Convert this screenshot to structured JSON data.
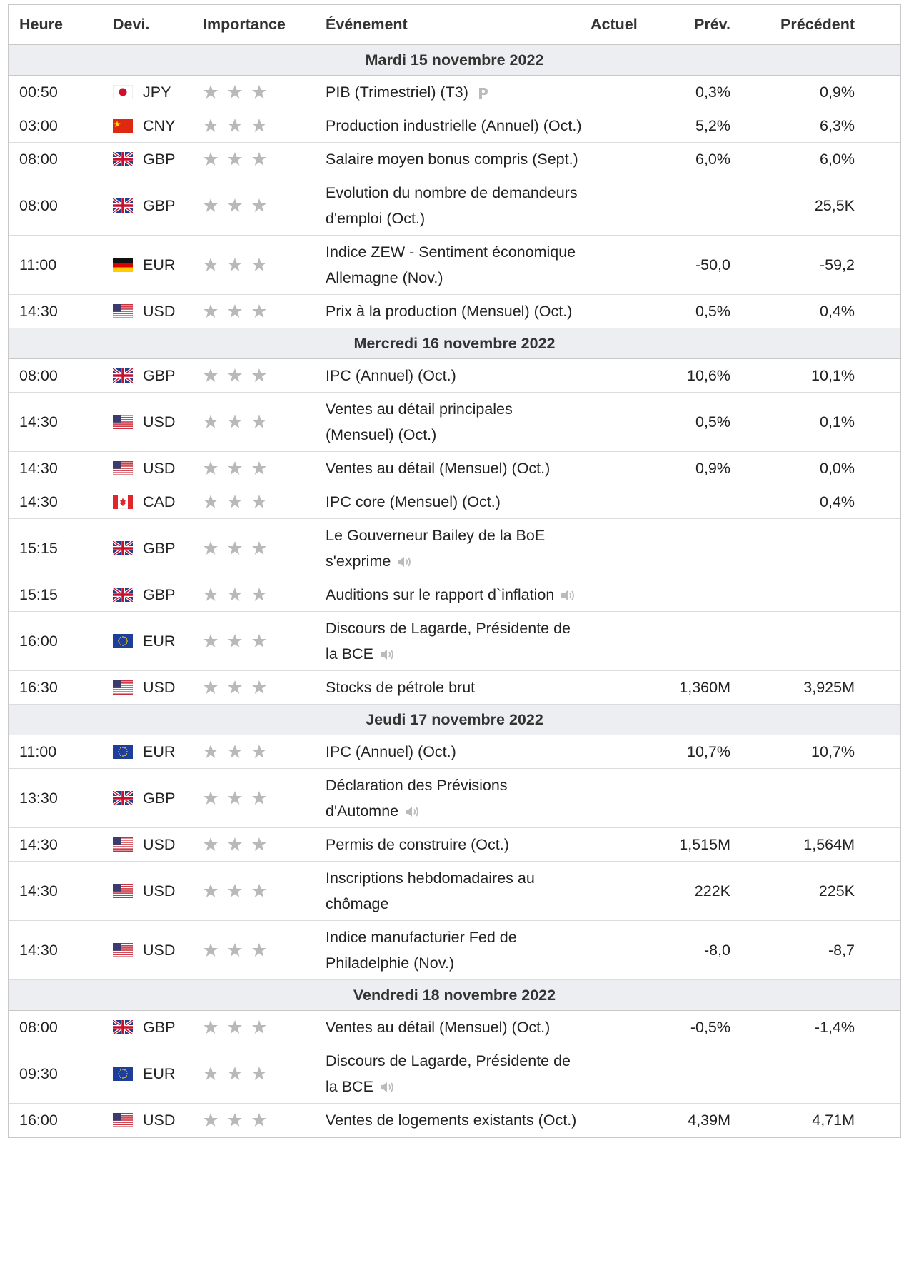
{
  "header": {
    "columns": [
      "Heure",
      "Devi.",
      "Importance",
      "Événement",
      "Actuel",
      "Prév.",
      "Précédent"
    ]
  },
  "groups": [
    {
      "date": "Mardi 15 novembre 2022",
      "rows": [
        {
          "time": "00:50",
          "currency": "JPY",
          "event": "PIB (Trimestriel) (T3)",
          "forecast": "0,3%",
          "previous": "0,9%"
        },
        {
          "time": "03:00",
          "currency": "CNY",
          "event": "Production industrielle (Annuel) (Oct.)",
          "forecast": "5,2%",
          "previous": "6,3%"
        },
        {
          "time": "08:00",
          "currency": "GBP",
          "event": "Salaire moyen bonus compris (Sept.)",
          "forecast": "6,0%",
          "previous": "6,0%"
        },
        {
          "time": "08:00",
          "currency": "GBP",
          "event": "Evolution du nombre de demandeurs d'emploi (Oct.)",
          "previous": "25,5K"
        },
        {
          "time": "11:00",
          "currency": "EUR",
          "event": "Indice ZEW - Sentiment économique Allemagne (Nov.)",
          "forecast": "-50,0",
          "previous": "-59,2"
        },
        {
          "time": "14:30",
          "currency": "USD",
          "event": "Prix à la production (Mensuel) (Oct.)",
          "forecast": "0,5%",
          "previous": "0,4%"
        }
      ]
    },
    {
      "date": "Mercredi 16 novembre 2022",
      "rows": [
        {
          "time": "08:00",
          "currency": "GBP",
          "event": "IPC (Annuel) (Oct.)",
          "forecast": "10,6%",
          "previous": "10,1%"
        },
        {
          "time": "14:30",
          "currency": "USD",
          "event": "Ventes au détail principales (Mensuel) (Oct.)",
          "forecast": "0,5%",
          "previous": "0,1%"
        },
        {
          "time": "14:30",
          "currency": "USD",
          "event": "Ventes au détail (Mensuel) (Oct.)",
          "forecast": "0,9%",
          "previous": "0,0%"
        },
        {
          "time": "14:30",
          "currency": "CAD",
          "event": "IPC core (Mensuel) (Oct.)",
          "previous": "0,4%"
        },
        {
          "time": "15:15",
          "currency": "GBP",
          "event": "Le Gouverneur Bailey de la BoE s'exprime"
        },
        {
          "time": "15:15",
          "currency": "GBP",
          "event": "Auditions sur le rapport d`inflation"
        },
        {
          "time": "16:00",
          "currency": "EUR",
          "event": "Discours de Lagarde, Présidente de la BCE"
        },
        {
          "time": "16:30",
          "currency": "USD",
          "event": "Stocks de pétrole brut",
          "forecast": "1,360M",
          "previous": "3,925M"
        }
      ]
    },
    {
      "date": "Jeudi 17 novembre 2022",
      "rows": [
        {
          "time": "11:00",
          "currency": "EUR",
          "event": "IPC (Annuel) (Oct.)",
          "forecast": "10,7%",
          "previous": "10,7%"
        },
        {
          "time": "13:30",
          "currency": "GBP",
          "event": "Déclaration des Prévisions d'Automne"
        },
        {
          "time": "14:30",
          "currency": "USD",
          "event": "Permis de construire (Oct.)",
          "forecast": "1,515M",
          "previous": "1,564M"
        },
        {
          "time": "14:30",
          "currency": "USD",
          "event": "Inscriptions hebdomadaires au chômage",
          "forecast": "222K",
          "previous": "225K"
        },
        {
          "time": "14:30",
          "currency": "USD",
          "event": "Indice manufacturier Fed de Philadelphie (Nov.)",
          "forecast": "-8,0",
          "previous": "-8,7"
        }
      ]
    },
    {
      "date": "Vendredi 18 novembre 2022",
      "rows": [
        {
          "time": "08:00",
          "currency": "GBP",
          "event": "Ventes au détail (Mensuel) (Oct.)",
          "forecast": "-0,5%",
          "previous": "-1,4%"
        },
        {
          "time": "09:30",
          "currency": "EUR",
          "event": "Discours de Lagarde, Présidente de la BCE"
        },
        {
          "time": "16:00",
          "currency": "USD",
          "event": "Ventes de logements existants (Oct.)",
          "forecast": "4,39M",
          "previous": "4,71M"
        }
      ]
    }
  ]
}
